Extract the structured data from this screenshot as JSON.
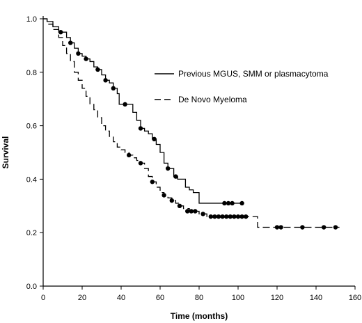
{
  "chart_data": {
    "type": "line",
    "title": "",
    "xlabel": "Time (months)",
    "ylabel": "Survival",
    "xlim": [
      0,
      160
    ],
    "ylim": [
      0.0,
      1.0
    ],
    "xticks": [
      0,
      20,
      40,
      60,
      80,
      100,
      120,
      140,
      160
    ],
    "yticks": [
      "0.0",
      "0.2",
      "0.4",
      "0.6",
      "0.8",
      "1.0"
    ],
    "grid": false,
    "legend_position": "upper-right",
    "series": [
      {
        "name": "Previous MGUS, SMM or plasmacytoma",
        "line_style": "solid",
        "steps": [
          [
            0,
            1.0
          ],
          [
            2,
            0.99
          ],
          [
            5,
            0.97
          ],
          [
            8,
            0.95
          ],
          [
            12,
            0.93
          ],
          [
            14,
            0.91
          ],
          [
            16,
            0.89
          ],
          [
            18,
            0.87
          ],
          [
            20,
            0.86
          ],
          [
            22,
            0.85
          ],
          [
            24,
            0.84
          ],
          [
            26,
            0.82
          ],
          [
            28,
            0.81
          ],
          [
            30,
            0.79
          ],
          [
            32,
            0.77
          ],
          [
            34,
            0.76
          ],
          [
            36,
            0.74
          ],
          [
            38,
            0.72
          ],
          [
            39,
            0.68
          ],
          [
            46,
            0.65
          ],
          [
            48,
            0.62
          ],
          [
            50,
            0.59
          ],
          [
            52,
            0.58
          ],
          [
            54,
            0.57
          ],
          [
            56,
            0.55
          ],
          [
            58,
            0.53
          ],
          [
            60,
            0.5
          ],
          [
            62,
            0.46
          ],
          [
            64,
            0.44
          ],
          [
            67,
            0.41
          ],
          [
            69,
            0.4
          ],
          [
            73,
            0.37
          ],
          [
            75,
            0.36
          ],
          [
            77,
            0.35
          ],
          [
            80,
            0.31
          ],
          [
            103,
            0.31
          ]
        ],
        "censored": [
          [
            9,
            0.95
          ],
          [
            14,
            0.91
          ],
          [
            18,
            0.87
          ],
          [
            22,
            0.85
          ],
          [
            28,
            0.81
          ],
          [
            32,
            0.77
          ],
          [
            36,
            0.74
          ],
          [
            42,
            0.68
          ],
          [
            50,
            0.59
          ],
          [
            57,
            0.55
          ],
          [
            64,
            0.44
          ],
          [
            68,
            0.41
          ],
          [
            93,
            0.31
          ],
          [
            95,
            0.31
          ],
          [
            97,
            0.31
          ],
          [
            102,
            0.31
          ]
        ]
      },
      {
        "name": "De Novo Myeloma",
        "line_style": "dashed",
        "steps": [
          [
            0,
            1.0
          ],
          [
            2,
            0.98
          ],
          [
            5,
            0.96
          ],
          [
            8,
            0.93
          ],
          [
            10,
            0.9
          ],
          [
            12,
            0.87
          ],
          [
            14,
            0.84
          ],
          [
            16,
            0.8
          ],
          [
            18,
            0.77
          ],
          [
            20,
            0.74
          ],
          [
            22,
            0.71
          ],
          [
            24,
            0.68
          ],
          [
            26,
            0.66
          ],
          [
            28,
            0.63
          ],
          [
            30,
            0.6
          ],
          [
            32,
            0.58
          ],
          [
            34,
            0.56
          ],
          [
            36,
            0.54
          ],
          [
            38,
            0.52
          ],
          [
            40,
            0.51
          ],
          [
            42,
            0.5
          ],
          [
            44,
            0.49
          ],
          [
            46,
            0.48
          ],
          [
            48,
            0.47
          ],
          [
            50,
            0.46
          ],
          [
            52,
            0.44
          ],
          [
            54,
            0.41
          ],
          [
            56,
            0.39
          ],
          [
            58,
            0.37
          ],
          [
            60,
            0.35
          ],
          [
            62,
            0.34
          ],
          [
            64,
            0.33
          ],
          [
            66,
            0.32
          ],
          [
            68,
            0.31
          ],
          [
            70,
            0.3
          ],
          [
            72,
            0.29
          ],
          [
            75,
            0.28
          ],
          [
            80,
            0.27
          ],
          [
            84,
            0.26
          ],
          [
            110,
            0.22
          ],
          [
            152,
            0.22
          ]
        ],
        "censored": [
          [
            44,
            0.49
          ],
          [
            50,
            0.46
          ],
          [
            56,
            0.39
          ],
          [
            62,
            0.34
          ],
          [
            66,
            0.32
          ],
          [
            70,
            0.3
          ],
          [
            74,
            0.28
          ],
          [
            76,
            0.28
          ],
          [
            78,
            0.28
          ],
          [
            82,
            0.27
          ],
          [
            86,
            0.26
          ],
          [
            88,
            0.26
          ],
          [
            90,
            0.26
          ],
          [
            92,
            0.26
          ],
          [
            94,
            0.26
          ],
          [
            96,
            0.26
          ],
          [
            98,
            0.26
          ],
          [
            100,
            0.26
          ],
          [
            102,
            0.26
          ],
          [
            104,
            0.26
          ],
          [
            120,
            0.22
          ],
          [
            122,
            0.22
          ],
          [
            133,
            0.22
          ],
          [
            144,
            0.22
          ],
          [
            150,
            0.22
          ]
        ]
      }
    ]
  }
}
